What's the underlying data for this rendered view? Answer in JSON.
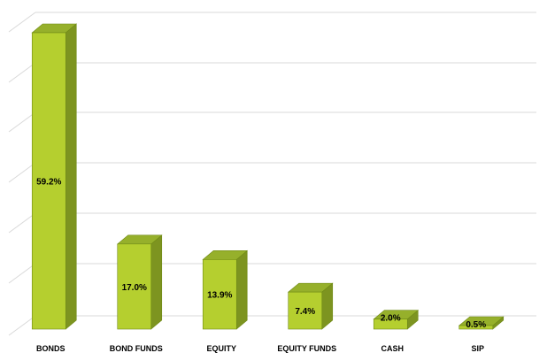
{
  "chart_data": {
    "type": "bar",
    "title": "",
    "xlabel": "",
    "ylabel": "",
    "categories": [
      "BONDS",
      "BOND FUNDS",
      "EQUITY",
      "EQUITY FUNDS",
      "CASH",
      "SIP"
    ],
    "values": [
      59.2,
      17.0,
      13.9,
      7.4,
      2.0,
      0.5
    ],
    "data_labels": [
      "59.2%",
      "17.0%",
      "13.9%",
      "7.4%",
      "2.0%",
      "0.5%"
    ],
    "ylim": [
      0,
      60
    ],
    "grid": true,
    "legend": "none",
    "colors": {
      "bar_front": "#b5cf2f",
      "bar_side": "#7d9420",
      "bar_top": "#96b02b",
      "bar_edge": "#6f8a16",
      "grid": "#d9d9d9"
    }
  }
}
